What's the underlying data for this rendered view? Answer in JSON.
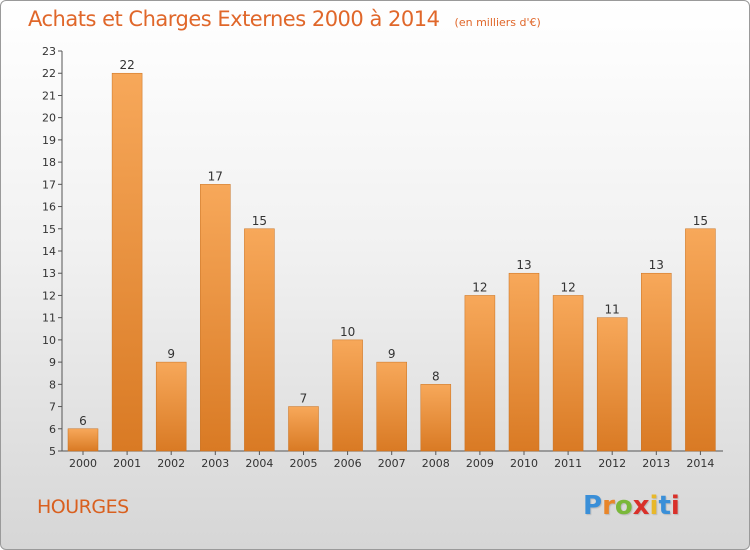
{
  "chart_title": "Achats et Charges Externes 2000 à 2014",
  "chart_unit": "(en milliers d'€)",
  "place_name": "HOURGES",
  "brand": {
    "text": "Proxiti",
    "letter_colors": [
      "#3a8fd8",
      "#e8862a",
      "#7ab83a",
      "#d9302a",
      "#e8b82a",
      "#3a8fd8",
      "#d9302a"
    ]
  },
  "colors": {
    "bar_light": "#f7a85a",
    "bar_dark": "#d97a24",
    "title": "#e0672a"
  },
  "chart_data": {
    "type": "bar",
    "categories": [
      "2000",
      "2001",
      "2002",
      "2003",
      "2004",
      "2005",
      "2006",
      "2007",
      "2008",
      "2009",
      "2010",
      "2011",
      "2012",
      "2013",
      "2014"
    ],
    "values": [
      6,
      22,
      9,
      17,
      15,
      7,
      10,
      9,
      8,
      12,
      13,
      12,
      11,
      13,
      15
    ],
    "ylim": [
      5,
      23
    ],
    "yticks": [
      5,
      6,
      7,
      8,
      9,
      10,
      11,
      12,
      13,
      14,
      15,
      16,
      17,
      18,
      19,
      20,
      21,
      22,
      23
    ],
    "grid": false,
    "data_labels": true
  }
}
